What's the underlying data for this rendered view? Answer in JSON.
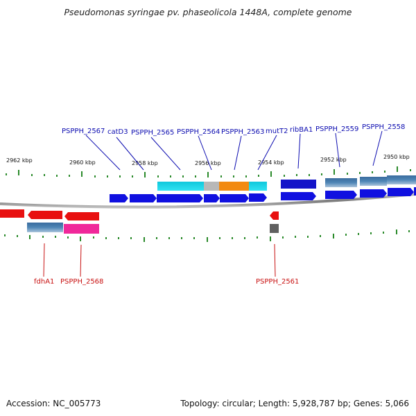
{
  "title": "Pseudomonas syringae pv. phaseolicola 1448A, complete genome",
  "accession_text": "Accession: NC_005773",
  "summary_text": "Topology: circular; Length: 5,928,787 bp; Genes: 5,066",
  "colors": {
    "forward_gene": "#1010e0",
    "reverse_gene": "#e81010",
    "label_forward": "#0b0bb0",
    "label_reverse": "#c81010",
    "tick": "#2a8a2a",
    "backbone": "#8a8a8a",
    "feature_cyan": "#18d4e8",
    "feature_gray": "#b8b8b8",
    "feature_orange": "#f28a10",
    "feature_steelblue": "#4a80b0",
    "feature_pink": "#f0289a",
    "feature_darkgray": "#606060",
    "feature_darkblue": "#1414c8"
  },
  "scale_labels": [
    {
      "text": "2962 kbp",
      "kbp": 2962
    },
    {
      "text": "2960 kbp",
      "kbp": 2960
    },
    {
      "text": "2958 kbp",
      "kbp": 2958
    },
    {
      "text": "2956 kbp",
      "kbp": 2956
    },
    {
      "text": "2954 kbp",
      "kbp": 2954
    },
    {
      "text": "2952 kbp",
      "kbp": 2952
    },
    {
      "text": "2950 kbp",
      "kbp": 2950
    }
  ],
  "forward_labels": [
    "PSPPH_2567",
    "catD3",
    "PSPPH_2565",
    "PSPPH_2564",
    "PSPPH_2563",
    "mutT2",
    "ribBA1",
    "PSPPH_2559",
    "PSPPH_2558"
  ],
  "reverse_labels": [
    "fdhA1",
    "PSPPH_2568",
    "PSPPH_2561"
  ]
}
